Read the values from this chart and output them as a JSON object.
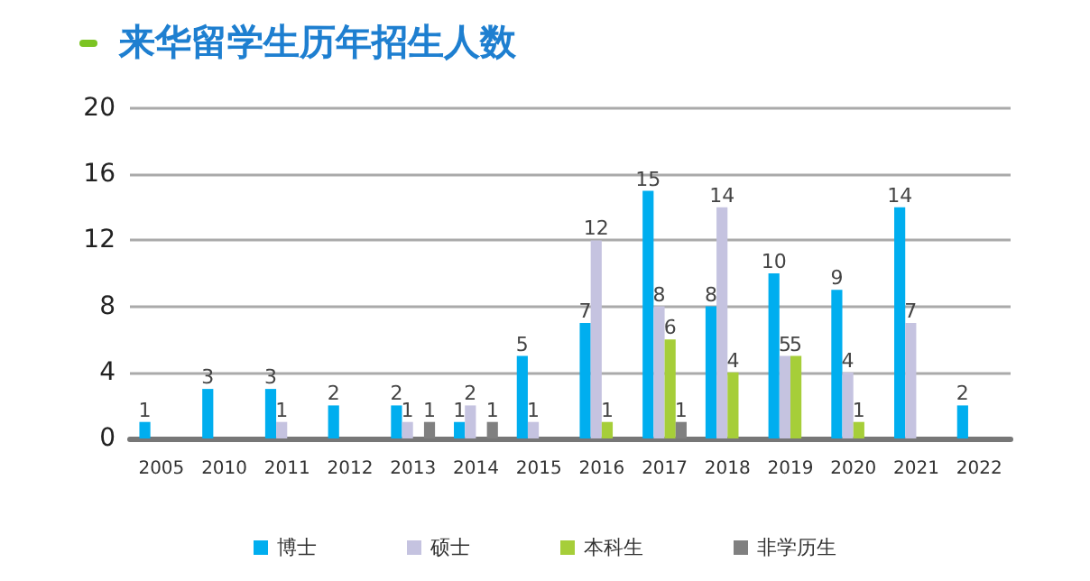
{
  "chart_data": {
    "type": "bar",
    "title": "来华留学生历年招生人数",
    "categories": [
      "2005",
      "2010",
      "2011",
      "2012",
      "2013",
      "2014",
      "2015",
      "2016",
      "2017",
      "2018",
      "2019",
      "2020",
      "2021",
      "2022"
    ],
    "series": [
      {
        "name": "博士",
        "color": "#00aeef",
        "values": [
          1,
          3,
          3,
          2,
          2,
          1,
          5,
          7,
          15,
          8,
          10,
          9,
          14,
          2
        ]
      },
      {
        "name": "硕士",
        "color": "#c5c3e0",
        "values": [
          null,
          null,
          1,
          null,
          1,
          2,
          1,
          12,
          8,
          14,
          5,
          4,
          7,
          null
        ]
      },
      {
        "name": "本科生",
        "color": "#a6ce39",
        "values": [
          null,
          null,
          null,
          null,
          null,
          null,
          null,
          1,
          6,
          4,
          5,
          1,
          null,
          null
        ]
      },
      {
        "name": "非学历生",
        "color": "#808080",
        "values": [
          null,
          null,
          null,
          null,
          1,
          1,
          null,
          null,
          1,
          null,
          null,
          null,
          null,
          null
        ]
      }
    ],
    "ylim": [
      0,
      20
    ],
    "yticks": [
      0,
      4,
      8,
      12,
      16,
      20
    ],
    "grid": "y",
    "legend": "bottom",
    "data_labels": true
  }
}
